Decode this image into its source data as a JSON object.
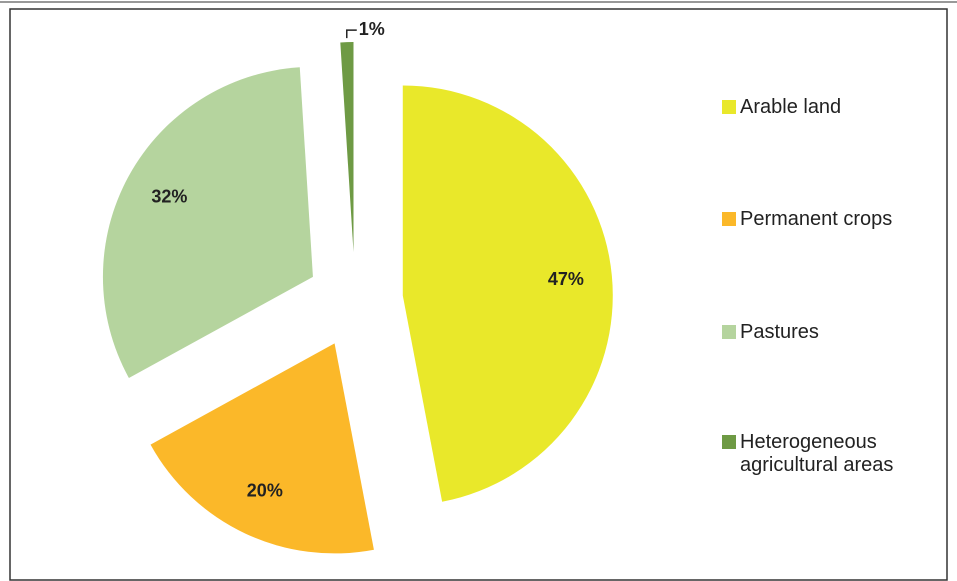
{
  "chart_data": {
    "type": "pie",
    "categories": [
      "Arable land",
      "Permanent crops",
      "Pastures",
      "Heterogeneous agricultural areas"
    ],
    "values": [
      47,
      20,
      32,
      1
    ],
    "value_labels": [
      "47%",
      "20%",
      "32%",
      "1%"
    ],
    "colors": [
      "#e9e82a",
      "#fbb829",
      "#b5d49e",
      "#6e9a44"
    ],
    "legend": "right"
  }
}
